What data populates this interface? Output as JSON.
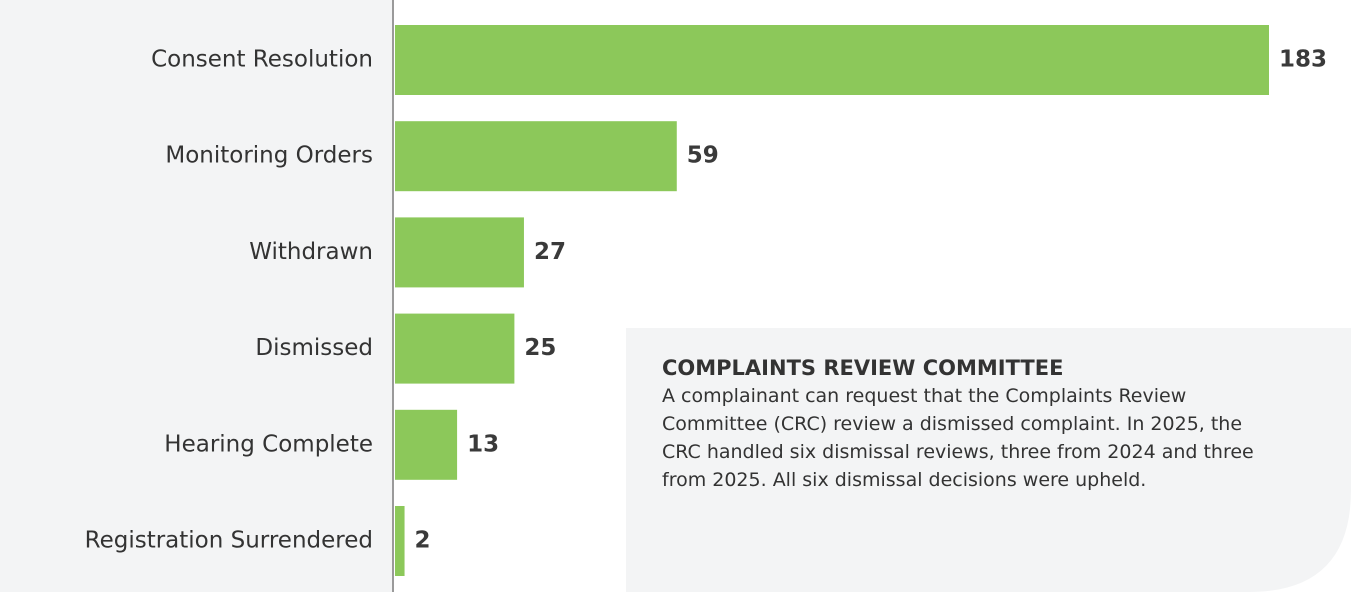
{
  "chart_data": {
    "type": "bar",
    "orientation": "horizontal",
    "categories": [
      "Consent Resolution",
      "Monitoring Orders",
      "Withdrawn",
      "Dismissed",
      "Hearing Complete",
      "Registration Surrendered"
    ],
    "values": [
      183,
      59,
      27,
      25,
      13,
      2
    ],
    "color": "#8cc85a"
  },
  "callout": {
    "title": "COMPLAINTS REVIEW COMMITTEE",
    "text": "A complainant can request that the Complaints Review Committee (CRC) review a dismissed complaint. In 2025, the CRC handled six dismissal reviews, three from 2024 and three from 2025. All six dismissal decisions were upheld."
  }
}
